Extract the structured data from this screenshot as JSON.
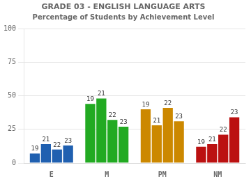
{
  "chart_data": {
    "type": "bar",
    "title": "GRADE 03 - ENGLISH LANGUAGE ARTS",
    "subtitle": "Percentage of Students by Achievement Level",
    "categories": [
      "E",
      "M",
      "PM",
      "NM"
    ],
    "series": [
      {
        "name": "19",
        "values": [
          7,
          44,
          40,
          12
        ]
      },
      {
        "name": "21",
        "values": [
          14,
          48,
          28,
          14
        ]
      },
      {
        "name": "22",
        "values": [
          10,
          32,
          41,
          21
        ]
      },
      {
        "name": "23",
        "values": [
          13,
          27,
          31,
          34
        ]
      }
    ],
    "colors": [
      "#2060b0",
      "#22aa22",
      "#cc8800",
      "#bb1111"
    ],
    "ylim": [
      0,
      100
    ],
    "yticks": [
      0,
      25,
      50,
      75,
      100
    ],
    "grid": true
  }
}
